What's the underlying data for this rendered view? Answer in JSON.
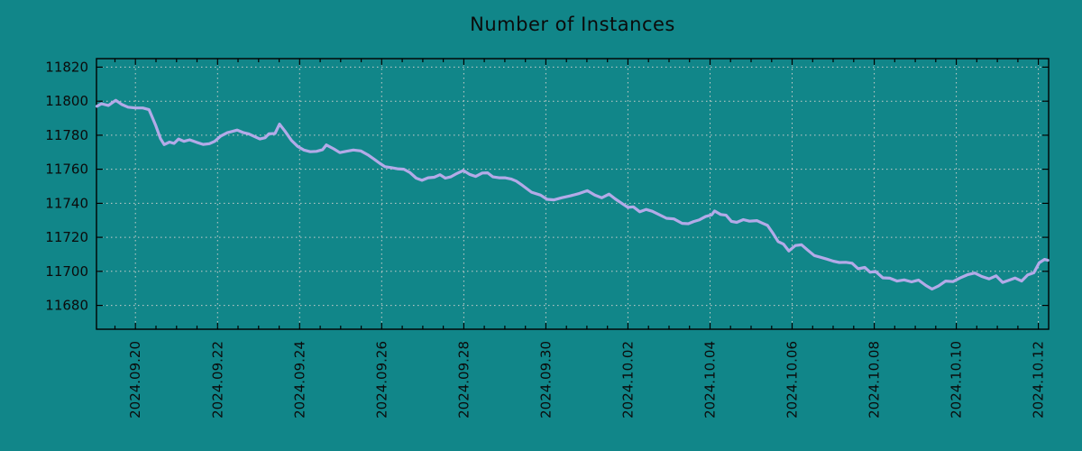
{
  "page": {
    "background_color": "#118689",
    "text_color": "#0b0b0b"
  },
  "chart_data": {
    "type": "line",
    "title": "Number of Instances",
    "xlabel": "",
    "ylabel": "",
    "x_unit": "days since 2024-09-19 00:00",
    "xlim": [
      0.05,
      23.25
    ],
    "ylim": [
      11666,
      11825
    ],
    "grid": {
      "show": true,
      "style": "dashed",
      "color": "#c9cdcb"
    },
    "axis_color": "#000000",
    "tick_label_color": "#0b0b0b",
    "x_ticks": [
      {
        "x": 1,
        "label": "2024.09.20"
      },
      {
        "x": 3,
        "label": "2024.09.22"
      },
      {
        "x": 5,
        "label": "2024.09.24"
      },
      {
        "x": 7,
        "label": "2024.09.26"
      },
      {
        "x": 9,
        "label": "2024.09.28"
      },
      {
        "x": 11,
        "label": "2024.09.30"
      },
      {
        "x": 13,
        "label": "2024.10.02"
      },
      {
        "x": 15,
        "label": "2024.10.04"
      },
      {
        "x": 17,
        "label": "2024.10.06"
      },
      {
        "x": 19,
        "label": "2024.10.08"
      },
      {
        "x": 21,
        "label": "2024.10.10"
      },
      {
        "x": 23,
        "label": "2024.10.12"
      }
    ],
    "x_minor_step": 0.5,
    "y_ticks": [
      11680,
      11700,
      11720,
      11740,
      11760,
      11780,
      11800,
      11820
    ],
    "series": [
      {
        "name": "Number of Instances",
        "color": "#b3aae8",
        "points": [
          [
            0.06,
            11797
          ],
          [
            0.17,
            11798.5
          ],
          [
            0.34,
            11797.5
          ],
          [
            0.52,
            11800.5
          ],
          [
            0.67,
            11798
          ],
          [
            0.82,
            11796.5
          ],
          [
            1.0,
            11796
          ],
          [
            1.18,
            11796
          ],
          [
            1.33,
            11795
          ],
          [
            1.49,
            11786
          ],
          [
            1.61,
            11778
          ],
          [
            1.7,
            11774.5
          ],
          [
            1.83,
            11776
          ],
          [
            1.94,
            11775.2
          ],
          [
            2.05,
            11777.8
          ],
          [
            2.18,
            11776.4
          ],
          [
            2.32,
            11777.3
          ],
          [
            2.49,
            11775.8
          ],
          [
            2.65,
            11774.6
          ],
          [
            2.8,
            11775
          ],
          [
            2.93,
            11776.4
          ],
          [
            3.08,
            11779.5
          ],
          [
            3.24,
            11781.5
          ],
          [
            3.37,
            11782.3
          ],
          [
            3.48,
            11783
          ],
          [
            3.63,
            11781.5
          ],
          [
            3.76,
            11780.8
          ],
          [
            3.92,
            11779
          ],
          [
            4.03,
            11777.8
          ],
          [
            4.16,
            11778.5
          ],
          [
            4.25,
            11780.8
          ],
          [
            4.4,
            11781
          ],
          [
            4.51,
            11786.5
          ],
          [
            4.64,
            11782.5
          ],
          [
            4.8,
            11777
          ],
          [
            4.95,
            11773.5
          ],
          [
            5.1,
            11771.3
          ],
          [
            5.26,
            11770.3
          ],
          [
            5.41,
            11770.5
          ],
          [
            5.56,
            11771.5
          ],
          [
            5.65,
            11774.3
          ],
          [
            5.83,
            11772
          ],
          [
            5.98,
            11769.8
          ],
          [
            6.13,
            11770.5
          ],
          [
            6.31,
            11771.3
          ],
          [
            6.49,
            11770.8
          ],
          [
            6.66,
            11768.5
          ],
          [
            6.81,
            11766
          ],
          [
            6.95,
            11763.5
          ],
          [
            7.08,
            11761.5
          ],
          [
            7.23,
            11761
          ],
          [
            7.38,
            11760.3
          ],
          [
            7.54,
            11760
          ],
          [
            7.69,
            11758
          ],
          [
            7.84,
            11754.8
          ],
          [
            7.98,
            11753.5
          ],
          [
            8.13,
            11755
          ],
          [
            8.28,
            11755.3
          ],
          [
            8.42,
            11756.8
          ],
          [
            8.55,
            11754.8
          ],
          [
            8.68,
            11755.5
          ],
          [
            8.83,
            11757.5
          ],
          [
            8.99,
            11759.3
          ],
          [
            9.14,
            11757
          ],
          [
            9.29,
            11755.8
          ],
          [
            9.45,
            11757.8
          ],
          [
            9.58,
            11757.9
          ],
          [
            9.71,
            11755.5
          ],
          [
            9.86,
            11755
          ],
          [
            10.0,
            11755
          ],
          [
            10.15,
            11754.3
          ],
          [
            10.28,
            11753
          ],
          [
            10.43,
            11750.5
          ],
          [
            10.65,
            11746.5
          ],
          [
            10.87,
            11744.8
          ],
          [
            11.03,
            11742.3
          ],
          [
            11.2,
            11742
          ],
          [
            11.38,
            11743.2
          ],
          [
            11.6,
            11744.4
          ],
          [
            11.82,
            11745.8
          ],
          [
            12.01,
            11747.4
          ],
          [
            12.19,
            11744.8
          ],
          [
            12.36,
            11743.2
          ],
          [
            12.54,
            11745.4
          ],
          [
            12.69,
            11742.6
          ],
          [
            12.85,
            11740
          ],
          [
            13.0,
            11737.6
          ],
          [
            13.13,
            11737.9
          ],
          [
            13.29,
            11735
          ],
          [
            13.44,
            11736.4
          ],
          [
            13.59,
            11735.3
          ],
          [
            13.72,
            11733.8
          ],
          [
            13.94,
            11731.2
          ],
          [
            14.12,
            11730.8
          ],
          [
            14.32,
            11728.2
          ],
          [
            14.47,
            11728
          ],
          [
            14.6,
            11729.3
          ],
          [
            14.73,
            11730.2
          ],
          [
            14.89,
            11732.2
          ],
          [
            15.04,
            11733.2
          ],
          [
            15.11,
            11735.5
          ],
          [
            15.26,
            11733.4
          ],
          [
            15.39,
            11733
          ],
          [
            15.52,
            11729.4
          ],
          [
            15.65,
            11728.8
          ],
          [
            15.81,
            11730.4
          ],
          [
            15.96,
            11729.5
          ],
          [
            16.14,
            11729.8
          ],
          [
            16.27,
            11728.4
          ],
          [
            16.4,
            11727
          ],
          [
            16.53,
            11722.5
          ],
          [
            16.66,
            11717.5
          ],
          [
            16.79,
            11716
          ],
          [
            16.92,
            11712
          ],
          [
            17.08,
            11715.2
          ],
          [
            17.23,
            11715.6
          ],
          [
            17.38,
            11712.5
          ],
          [
            17.54,
            11709.3
          ],
          [
            17.69,
            11708.3
          ],
          [
            17.85,
            11707.2
          ],
          [
            18.0,
            11706
          ],
          [
            18.15,
            11705.2
          ],
          [
            18.31,
            11705.3
          ],
          [
            18.46,
            11704.8
          ],
          [
            18.61,
            11701.5
          ],
          [
            18.77,
            11702.3
          ],
          [
            18.9,
            11699.5
          ],
          [
            19.03,
            11700
          ],
          [
            19.21,
            11696.2
          ],
          [
            19.38,
            11696
          ],
          [
            19.56,
            11694.3
          ],
          [
            19.73,
            11695
          ],
          [
            19.91,
            11693.8
          ],
          [
            20.08,
            11694.9
          ],
          [
            20.26,
            11691.7
          ],
          [
            20.41,
            11689.6
          ],
          [
            20.57,
            11691.5
          ],
          [
            20.74,
            11694.3
          ],
          [
            20.92,
            11694
          ],
          [
            21.09,
            11696.1
          ],
          [
            21.27,
            11698
          ],
          [
            21.45,
            11699
          ],
          [
            21.62,
            11697
          ],
          [
            21.8,
            11695.6
          ],
          [
            21.97,
            11697.4
          ],
          [
            22.13,
            11693.5
          ],
          [
            22.28,
            11694.8
          ],
          [
            22.43,
            11696.1
          ],
          [
            22.59,
            11694.3
          ],
          [
            22.74,
            11697.9
          ],
          [
            22.89,
            11699.2
          ],
          [
            23.02,
            11705
          ],
          [
            23.15,
            11707
          ],
          [
            23.23,
            11706.5
          ]
        ]
      }
    ],
    "legend_position": "none"
  }
}
